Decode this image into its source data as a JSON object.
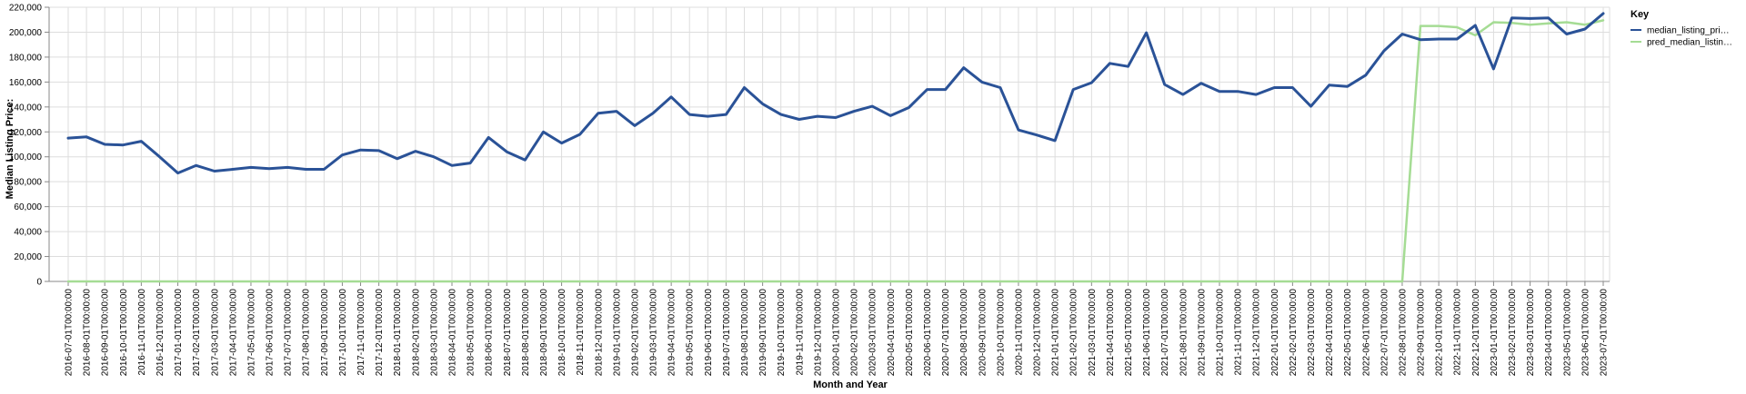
{
  "chart_data": {
    "type": "line",
    "xlabel": "Month and Year",
    "ylabel": "Median Listing Price:",
    "ylim": [
      0,
      220000
    ],
    "yticks": [
      0,
      20000,
      40000,
      60000,
      80000,
      100000,
      120000,
      140000,
      160000,
      180000,
      200000,
      220000
    ],
    "ytick_labels": [
      "0",
      "20,000",
      "40,000",
      "60,000",
      "80,000",
      "100,000",
      "120,000",
      "140,000",
      "160,000",
      "180,000",
      "200,000",
      "220,000"
    ],
    "grid": true,
    "legend": {
      "title": "Key",
      "placement": "right",
      "entries": [
        "median_listing_pri…",
        "pred_median_listin…"
      ]
    },
    "x": [
      "2016-07-01T00:00:00",
      "2016-08-01T00:00:00",
      "2016-09-01T00:00:00",
      "2016-10-01T00:00:00",
      "2016-11-01T00:00:00",
      "2016-12-01T00:00:00",
      "2017-01-01T00:00:00",
      "2017-02-01T00:00:00",
      "2017-03-01T00:00:00",
      "2017-04-01T00:00:00",
      "2017-05-01T00:00:00",
      "2017-06-01T00:00:00",
      "2017-07-01T00:00:00",
      "2017-08-01T00:00:00",
      "2017-09-01T00:00:00",
      "2017-10-01T00:00:00",
      "2017-11-01T00:00:00",
      "2017-12-01T00:00:00",
      "2018-01-01T00:00:00",
      "2018-02-01T00:00:00",
      "2018-03-01T00:00:00",
      "2018-04-01T00:00:00",
      "2018-05-01T00:00:00",
      "2018-06-01T00:00:00",
      "2018-07-01T00:00:00",
      "2018-08-01T00:00:00",
      "2018-09-01T00:00:00",
      "2018-10-01T00:00:00",
      "2018-11-01T00:00:00",
      "2018-12-01T00:00:00",
      "2019-01-01T00:00:00",
      "2019-02-01T00:00:00",
      "2019-03-01T00:00:00",
      "2019-04-01T00:00:00",
      "2019-05-01T00:00:00",
      "2019-06-01T00:00:00",
      "2019-07-01T00:00:00",
      "2019-08-01T00:00:00",
      "2019-09-01T00:00:00",
      "2019-10-01T00:00:00",
      "2019-11-01T00:00:00",
      "2019-12-01T00:00:00",
      "2020-01-01T00:00:00",
      "2020-02-01T00:00:00",
      "2020-03-01T00:00:00",
      "2020-04-01T00:00:00",
      "2020-05-01T00:00:00",
      "2020-06-01T00:00:00",
      "2020-07-01T00:00:00",
      "2020-08-01T00:00:00",
      "2020-09-01T00:00:00",
      "2020-10-01T00:00:00",
      "2020-11-01T00:00:00",
      "2020-12-01T00:00:00",
      "2021-01-01T00:00:00",
      "2021-02-01T00:00:00",
      "2021-03-01T00:00:00",
      "2021-04-01T00:00:00",
      "2021-05-01T00:00:00",
      "2021-06-01T00:00:00",
      "2021-07-01T00:00:00",
      "2021-08-01T00:00:00",
      "2021-09-01T00:00:00",
      "2021-10-01T00:00:00",
      "2021-11-01T00:00:00",
      "2021-12-01T00:00:00",
      "2022-01-01T00:00:00",
      "2022-02-01T00:00:00",
      "2022-03-01T00:00:00",
      "2022-04-01T00:00:00",
      "2022-05-01T00:00:00",
      "2022-06-01T00:00:00",
      "2022-07-01T00:00:00",
      "2022-08-01T00:00:00",
      "2022-09-01T00:00:00",
      "2022-10-01T00:00:00",
      "2022-11-01T00:00:00",
      "2022-12-01T00:00:00",
      "2023-01-01T00:00:00",
      "2023-02-01T00:00:00",
      "2023-03-01T00:00:00",
      "2023-04-01T00:00:00",
      "2023-05-01T00:00:00",
      "2023-06-01T00:00:00",
      "2023-07-01T00:00:00"
    ],
    "series": [
      {
        "name": "median_listing_pri…",
        "color": "#2a5297",
        "values": [
          115000,
          116000,
          110000,
          109500,
          112500,
          100000,
          87000,
          93000,
          88500,
          90000,
          91500,
          90500,
          91500,
          90000,
          90000,
          101500,
          105500,
          105000,
          98500,
          104500,
          100000,
          93000,
          95000,
          115500,
          104000,
          97500,
          120000,
          111000,
          118000,
          135000,
          136500,
          125000,
          135000,
          148000,
          134000,
          132500,
          134000,
          155500,
          142500,
          134000,
          130000,
          132500,
          131500,
          136500,
          140500,
          133000,
          139500,
          154000,
          154000,
          171500,
          160000,
          155500,
          121500,
          117500,
          113000,
          154000,
          159500,
          175000,
          172500,
          199500,
          158000,
          150000,
          159000,
          152500,
          152500,
          150000,
          155500,
          155500,
          140500,
          157500,
          156500,
          165500,
          185000,
          198500,
          194000,
          194500,
          194500,
          205500,
          170500,
          211500,
          211000,
          211500,
          198500,
          202500,
          215000
        ]
      },
      {
        "name": "pred_median_listin…",
        "color": "#a5dc94",
        "values": [
          0,
          0,
          0,
          0,
          0,
          0,
          0,
          0,
          0,
          0,
          0,
          0,
          0,
          0,
          0,
          0,
          0,
          0,
          0,
          0,
          0,
          0,
          0,
          0,
          0,
          0,
          0,
          0,
          0,
          0,
          0,
          0,
          0,
          0,
          0,
          0,
          0,
          0,
          0,
          0,
          0,
          0,
          0,
          0,
          0,
          0,
          0,
          0,
          0,
          0,
          0,
          0,
          0,
          0,
          0,
          0,
          0,
          0,
          0,
          0,
          0,
          0,
          0,
          0,
          0,
          0,
          0,
          0,
          0,
          0,
          0,
          0,
          0,
          0,
          205000,
          205000,
          204000,
          197500,
          208000,
          207500,
          206000,
          207000,
          208000,
          206000,
          209500
        ]
      }
    ]
  }
}
